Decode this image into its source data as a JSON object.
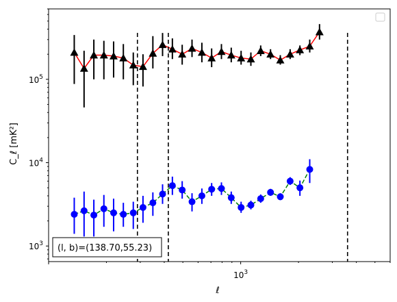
{
  "chart_data": {
    "type": "scatter",
    "x_scale": "log",
    "y_scale": "log",
    "xlabel": "ℓ",
    "ylabel": "C_ℓ [mK²]",
    "xlim": [
      100,
      6000
    ],
    "ylim": [
      650,
      700000
    ],
    "x_tick_labels": [
      {
        "value": 1000,
        "label": "10^3"
      }
    ],
    "y_tick_labels": [
      {
        "value": 1000,
        "label": "10^3"
      },
      {
        "value": 10000,
        "label": "10^4"
      },
      {
        "value": 100000,
        "label": "10^5"
      }
    ],
    "vertical_lines": [
      290,
      420,
      3600
    ],
    "annotation": "(l, b)=(138.70,55.23)",
    "legend": {
      "placement": "top-right",
      "entries": []
    },
    "series": [
      {
        "color": "#000000",
        "line_color": "#ff0000",
        "marker": "triangle",
        "linestyle": "solid",
        "points": [
          {
            "x": 136,
            "y": 210000,
            "lo": 88000,
            "hi": 340000
          },
          {
            "x": 153,
            "y": 135000,
            "lo": 46000,
            "hi": 220000
          },
          {
            "x": 172,
            "y": 195000,
            "lo": 100000,
            "hi": 300000
          },
          {
            "x": 194,
            "y": 195000,
            "lo": 100000,
            "hi": 290000
          },
          {
            "x": 218,
            "y": 190000,
            "lo": 105000,
            "hi": 285000
          },
          {
            "x": 245,
            "y": 180000,
            "lo": 100000,
            "hi": 265000
          },
          {
            "x": 276,
            "y": 148000,
            "lo": 85000,
            "hi": 210000
          },
          {
            "x": 310,
            "y": 142000,
            "lo": 82000,
            "hi": 200000
          },
          {
            "x": 349,
            "y": 205000,
            "lo": 135000,
            "hi": 330000
          },
          {
            "x": 392,
            "y": 260000,
            "lo": 190000,
            "hi": 360000
          },
          {
            "x": 441,
            "y": 230000,
            "lo": 175000,
            "hi": 310000
          },
          {
            "x": 496,
            "y": 200000,
            "lo": 150000,
            "hi": 260000
          },
          {
            "x": 558,
            "y": 235000,
            "lo": 185000,
            "hi": 300000
          },
          {
            "x": 628,
            "y": 210000,
            "lo": 160000,
            "hi": 275000
          },
          {
            "x": 706,
            "y": 180000,
            "lo": 140000,
            "hi": 235000
          },
          {
            "x": 794,
            "y": 215000,
            "lo": 175000,
            "hi": 265000
          },
          {
            "x": 893,
            "y": 195000,
            "lo": 160000,
            "hi": 240000
          },
          {
            "x": 1005,
            "y": 180000,
            "lo": 150000,
            "hi": 220000
          },
          {
            "x": 1130,
            "y": 175000,
            "lo": 145000,
            "hi": 210000
          },
          {
            "x": 1271,
            "y": 220000,
            "lo": 190000,
            "hi": 255000
          },
          {
            "x": 1430,
            "y": 200000,
            "lo": 175000,
            "hi": 230000
          },
          {
            "x": 1608,
            "y": 170000,
            "lo": 150000,
            "hi": 195000
          },
          {
            "x": 1809,
            "y": 200000,
            "lo": 175000,
            "hi": 230000
          },
          {
            "x": 2034,
            "y": 225000,
            "lo": 195000,
            "hi": 255000
          },
          {
            "x": 2288,
            "y": 250000,
            "lo": 210000,
            "hi": 300000
          },
          {
            "x": 2573,
            "y": 370000,
            "lo": 300000,
            "hi": 460000
          }
        ]
      },
      {
        "color": "#0000ff",
        "line_color": "#008000",
        "marker": "circle",
        "linestyle": "dashed",
        "points": [
          {
            "x": 136,
            "y": 2400,
            "lo": 1400,
            "hi": 3800
          },
          {
            "x": 153,
            "y": 2650,
            "lo": 1300,
            "hi": 4500
          },
          {
            "x": 172,
            "y": 2350,
            "lo": 1300,
            "hi": 3600
          },
          {
            "x": 194,
            "y": 2800,
            "lo": 1700,
            "hi": 4100
          },
          {
            "x": 218,
            "y": 2500,
            "lo": 1500,
            "hi": 3700
          },
          {
            "x": 245,
            "y": 2400,
            "lo": 1700,
            "hi": 3300
          },
          {
            "x": 276,
            "y": 2500,
            "lo": 1600,
            "hi": 3400
          },
          {
            "x": 310,
            "y": 2900,
            "lo": 1900,
            "hi": 4000
          },
          {
            "x": 349,
            "y": 3300,
            "lo": 2300,
            "hi": 4400
          },
          {
            "x": 392,
            "y": 4200,
            "lo": 3200,
            "hi": 5500
          },
          {
            "x": 441,
            "y": 5300,
            "lo": 4100,
            "hi": 6800
          },
          {
            "x": 496,
            "y": 4700,
            "lo": 3700,
            "hi": 6000
          },
          {
            "x": 558,
            "y": 3400,
            "lo": 2600,
            "hi": 4300
          },
          {
            "x": 628,
            "y": 4000,
            "lo": 3200,
            "hi": 4900
          },
          {
            "x": 706,
            "y": 4800,
            "lo": 4000,
            "hi": 5700
          },
          {
            "x": 794,
            "y": 4900,
            "lo": 4100,
            "hi": 5800
          },
          {
            "x": 893,
            "y": 3800,
            "lo": 3200,
            "hi": 4500
          },
          {
            "x": 1005,
            "y": 2900,
            "lo": 2500,
            "hi": 3400
          },
          {
            "x": 1130,
            "y": 3100,
            "lo": 2750,
            "hi": 3500
          },
          {
            "x": 1271,
            "y": 3700,
            "lo": 3300,
            "hi": 4150
          },
          {
            "x": 1430,
            "y": 4400,
            "lo": 4000,
            "hi": 4850
          },
          {
            "x": 1608,
            "y": 3900,
            "lo": 3550,
            "hi": 4300
          },
          {
            "x": 1809,
            "y": 6000,
            "lo": 5400,
            "hi": 6700
          },
          {
            "x": 2034,
            "y": 5000,
            "lo": 4000,
            "hi": 6100
          },
          {
            "x": 2288,
            "y": 8300,
            "lo": 5700,
            "hi": 11000
          }
        ]
      }
    ]
  }
}
